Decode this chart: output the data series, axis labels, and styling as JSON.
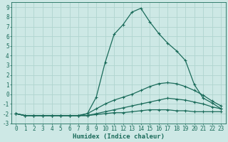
{
  "xlabel": "Humidex (Indice chaleur)",
  "xlim": [
    -0.5,
    23.5
  ],
  "ylim": [
    -3,
    9.5
  ],
  "bg_color": "#cde8e5",
  "grid_color": "#b0d4cf",
  "line_color": "#1a6b5a",
  "lines": [
    {
      "x": [
        0,
        1,
        2,
        3,
        4,
        5,
        6,
        7,
        8,
        9,
        10,
        11,
        12,
        13,
        14,
        15,
        16,
        17,
        18,
        19,
        20,
        21,
        22,
        23
      ],
      "y": [
        -2.0,
        -2.2,
        -2.2,
        -2.2,
        -2.2,
        -2.2,
        -2.2,
        -2.2,
        -2.2,
        -2.1,
        -2.0,
        -1.9,
        -1.9,
        -1.8,
        -1.7,
        -1.6,
        -1.6,
        -1.6,
        -1.7,
        -1.7,
        -1.8,
        -1.8,
        -1.8,
        -1.8
      ]
    },
    {
      "x": [
        0,
        1,
        2,
        3,
        4,
        5,
        6,
        7,
        8,
        9,
        10,
        11,
        12,
        13,
        14,
        15,
        16,
        17,
        18,
        19,
        20,
        21,
        22,
        23
      ],
      "y": [
        -2.0,
        -2.2,
        -2.2,
        -2.2,
        -2.2,
        -2.2,
        -2.2,
        -2.2,
        -2.2,
        -2.0,
        -1.8,
        -1.6,
        -1.4,
        -1.2,
        -1.0,
        -0.8,
        -0.6,
        -0.4,
        -0.5,
        -0.6,
        -0.8,
        -1.0,
        -1.3,
        -1.5
      ]
    },
    {
      "x": [
        0,
        1,
        2,
        3,
        4,
        5,
        6,
        7,
        8,
        9,
        10,
        11,
        12,
        13,
        14,
        15,
        16,
        17,
        18,
        19,
        20,
        21,
        22,
        23
      ],
      "y": [
        -2.0,
        -2.2,
        -2.2,
        -2.2,
        -2.2,
        -2.2,
        -2.2,
        -2.2,
        -2.0,
        -1.5,
        -1.0,
        -0.6,
        -0.3,
        0.0,
        0.4,
        0.8,
        1.1,
        1.2,
        1.1,
        0.8,
        0.4,
        -0.1,
        -0.7,
        -1.2
      ]
    },
    {
      "x": [
        0,
        1,
        2,
        3,
        4,
        5,
        6,
        7,
        8,
        9,
        10,
        11,
        12,
        13,
        14,
        15,
        16,
        17,
        18,
        19,
        20,
        21,
        22,
        23
      ],
      "y": [
        -2.0,
        -2.2,
        -2.2,
        -2.2,
        -2.2,
        -2.2,
        -2.2,
        -2.2,
        -2.0,
        -0.3,
        3.3,
        6.2,
        7.2,
        8.5,
        8.9,
        7.5,
        6.3,
        5.3,
        4.5,
        3.5,
        1.0,
        -0.4,
        -0.9,
        -1.5
      ]
    }
  ],
  "yticks": [
    -3,
    -2,
    -1,
    0,
    1,
    2,
    3,
    4,
    5,
    6,
    7,
    8,
    9
  ],
  "xticks": [
    0,
    1,
    2,
    3,
    4,
    5,
    6,
    7,
    8,
    9,
    10,
    11,
    12,
    13,
    14,
    15,
    16,
    17,
    18,
    19,
    20,
    21,
    22,
    23
  ],
  "marker": "+",
  "markersize": 3.5,
  "linewidth": 0.9,
  "xlabel_fontsize": 6.5,
  "tick_fontsize": 5.5
}
